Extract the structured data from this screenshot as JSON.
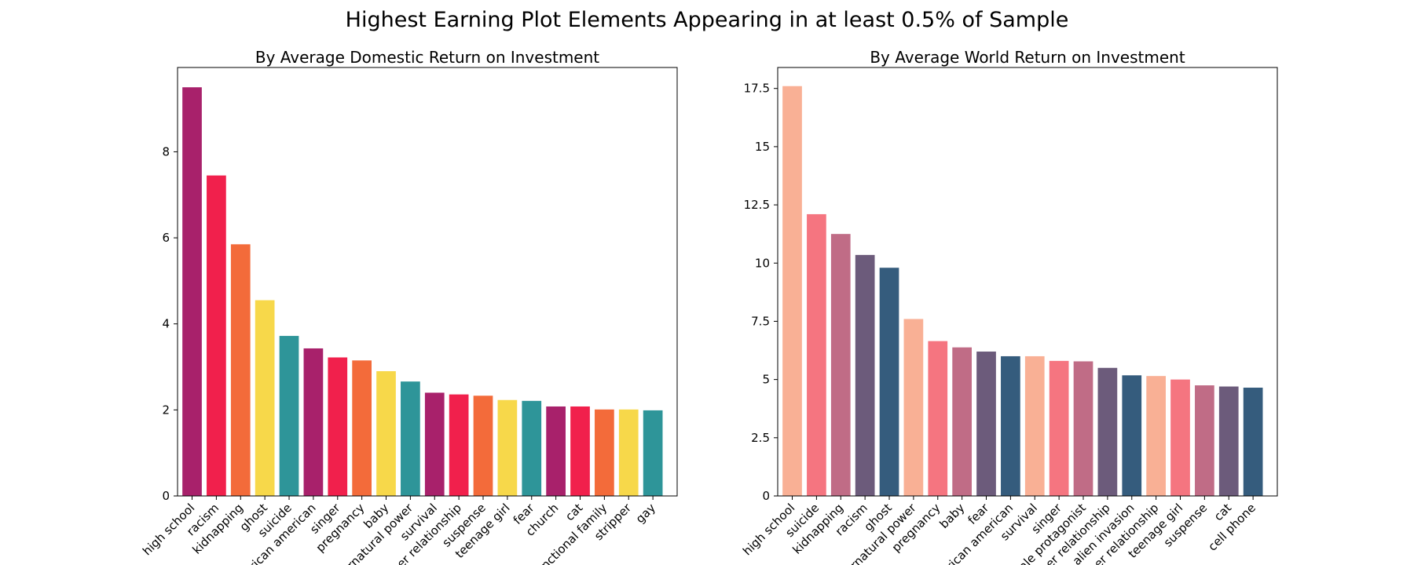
{
  "figure": {
    "suptitle": "Highest Earning Plot Elements Appearing in at least 0.5% of Sample"
  },
  "chart_data": [
    {
      "type": "bar",
      "title": "By Average Domestic Return on Investment",
      "xlabel": "",
      "ylabel": "",
      "ylim": [
        0,
        9.96
      ],
      "yticks": [
        0,
        2,
        4,
        6,
        8
      ],
      "ytick_labels": [
        "0",
        "2",
        "4",
        "6",
        "8"
      ],
      "grid": false,
      "legend": "none",
      "categories": [
        "high school",
        "racism",
        "kidnapping",
        "ghost",
        "suicide",
        "african american",
        "singer",
        "pregnancy",
        "baby",
        "supernatural power",
        "survival",
        "father relationship",
        "suspense",
        "teenage girl",
        "fear",
        "church",
        "cat",
        "dysfunctional family",
        "stripper",
        "gay"
      ],
      "category_labels_shown": [
        "high school",
        "racism",
        "kidnapping",
        "ghost",
        "suicide",
        "rican american",
        "singer",
        "pregnancy",
        "baby",
        "rnatural power",
        "survival",
        "er relationship",
        "suspense",
        "teenage girl",
        "fear",
        "church",
        "cat",
        "nctional family",
        "stripper",
        "gay"
      ],
      "values": [
        9.5,
        7.45,
        5.85,
        4.55,
        3.72,
        3.43,
        3.22,
        3.15,
        2.9,
        2.66,
        2.4,
        2.36,
        2.33,
        2.23,
        2.21,
        2.08,
        2.08,
        2.01,
        2.01,
        1.99
      ],
      "colors": [
        "#a8216b",
        "#f1204c",
        "#f36b3a",
        "#f7d84a",
        "#2e9599",
        "#a8216b",
        "#f1204c",
        "#f36b3a",
        "#f7d84a",
        "#2e9599",
        "#a8216b",
        "#f1204c",
        "#f36b3a",
        "#f7d84a",
        "#2e9599",
        "#a8216b",
        "#f1204c",
        "#f36b3a",
        "#f7d84a",
        "#2e9599"
      ]
    },
    {
      "type": "bar",
      "title": "By Average World Return on Investment",
      "xlabel": "",
      "ylabel": "",
      "ylim": [
        0,
        18.4
      ],
      "yticks": [
        0,
        2.5,
        5,
        7.5,
        10,
        12.5,
        15,
        17.5
      ],
      "ytick_labels": [
        "0",
        "2.5",
        "5",
        "7.5",
        "10",
        "12.5",
        "15",
        "17.5"
      ],
      "grid": false,
      "legend": "none",
      "categories": [
        "high school",
        "suicide",
        "kidnapping",
        "racism",
        "ghost",
        "supernatural power",
        "pregnancy",
        "baby",
        "fear",
        "african american",
        "survival",
        "singer",
        "female protagonist",
        "mother relationship",
        "alien invasion",
        "father relationship",
        "teenage girl",
        "suspense",
        "cat",
        "cell phone"
      ],
      "category_labels_shown": [
        "high school",
        "suicide",
        "kidnapping",
        "racism",
        "ghost",
        "rnatural power",
        "pregnancy",
        "baby",
        "fear",
        "rican american",
        "survival",
        "singer",
        "ale protagonist",
        "er relationship",
        "alien invasion",
        "er relationship",
        "teenage girl",
        "suspense",
        "cat",
        "cell phone"
      ],
      "values": [
        17.6,
        12.1,
        11.25,
        10.35,
        9.8,
        7.6,
        6.65,
        6.38,
        6.2,
        6.0,
        6.0,
        5.8,
        5.78,
        5.5,
        5.18,
        5.15,
        5.0,
        4.75,
        4.7,
        4.65
      ],
      "colors": [
        "#f9b095",
        "#f57580",
        "#c06c86",
        "#6c5b7b",
        "#355c7d",
        "#f9b095",
        "#f57580",
        "#c06c86",
        "#6c5b7b",
        "#355c7d",
        "#f9b095",
        "#f57580",
        "#c06c86",
        "#6c5b7b",
        "#355c7d",
        "#f9b095",
        "#f57580",
        "#c06c86",
        "#6c5b7b",
        "#355c7d"
      ]
    }
  ]
}
